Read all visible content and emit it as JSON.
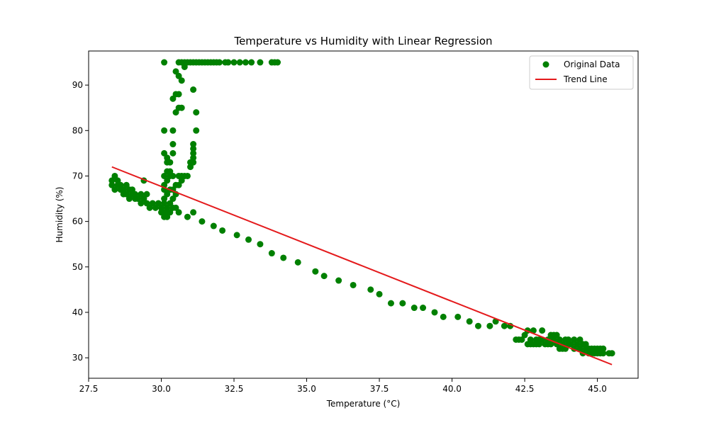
{
  "chart_data": {
    "type": "scatter",
    "title": "Temperature vs Humidity with Linear Regression",
    "xlabel": "Temperature (°C)",
    "ylabel": "Humidity (%)",
    "xlim": [
      27.5,
      46.4
    ],
    "ylim": [
      25.5,
      97.5
    ],
    "xticks": [
      27.5,
      30.0,
      32.5,
      35.0,
      37.5,
      40.0,
      42.5,
      45.0
    ],
    "xtick_labels": [
      "27.5",
      "30.0",
      "32.5",
      "35.0",
      "37.5",
      "40.0",
      "42.5",
      "45.0"
    ],
    "yticks": [
      30,
      40,
      50,
      60,
      70,
      80,
      90
    ],
    "ytick_labels": [
      "30",
      "40",
      "50",
      "60",
      "70",
      "80",
      "90"
    ],
    "grid": false,
    "legend_position": "top-right",
    "colors": {
      "scatter": "#008000",
      "trend": "#e41a1c"
    },
    "series": [
      {
        "name": "Original Data",
        "kind": "scatter",
        "points": [
          [
            28.3,
            69
          ],
          [
            28.3,
            68
          ],
          [
            28.4,
            70
          ],
          [
            28.4,
            67
          ],
          [
            28.5,
            69
          ],
          [
            28.5,
            68
          ],
          [
            28.6,
            67
          ],
          [
            28.6,
            68
          ],
          [
            28.7,
            66
          ],
          [
            28.7,
            67
          ],
          [
            28.8,
            68
          ],
          [
            28.8,
            66
          ],
          [
            28.9,
            67
          ],
          [
            28.9,
            65
          ],
          [
            29.0,
            66
          ],
          [
            29.0,
            67
          ],
          [
            29.1,
            65
          ],
          [
            29.1,
            66
          ],
          [
            29.2,
            65
          ],
          [
            29.3,
            64
          ],
          [
            29.3,
            66
          ],
          [
            29.4,
            69
          ],
          [
            29.4,
            65
          ],
          [
            29.5,
            64
          ],
          [
            29.5,
            66
          ],
          [
            29.6,
            63
          ],
          [
            29.7,
            64
          ],
          [
            29.8,
            63
          ],
          [
            29.9,
            64
          ],
          [
            30.0,
            62
          ],
          [
            30.0,
            63
          ],
          [
            30.1,
            61
          ],
          [
            30.1,
            62
          ],
          [
            30.1,
            64
          ],
          [
            30.1,
            65
          ],
          [
            30.1,
            67
          ],
          [
            30.1,
            68
          ],
          [
            30.1,
            70
          ],
          [
            30.1,
            75
          ],
          [
            30.1,
            80
          ],
          [
            30.1,
            95
          ],
          [
            30.2,
            61
          ],
          [
            30.2,
            62
          ],
          [
            30.2,
            63
          ],
          [
            30.2,
            66
          ],
          [
            30.2,
            69
          ],
          [
            30.2,
            71
          ],
          [
            30.2,
            73
          ],
          [
            30.2,
            74
          ],
          [
            30.3,
            62
          ],
          [
            30.3,
            64
          ],
          [
            30.3,
            67
          ],
          [
            30.3,
            70
          ],
          [
            30.3,
            71
          ],
          [
            30.3,
            73
          ],
          [
            30.4,
            63
          ],
          [
            30.4,
            65
          ],
          [
            30.4,
            67
          ],
          [
            30.4,
            70
          ],
          [
            30.4,
            75
          ],
          [
            30.4,
            77
          ],
          [
            30.4,
            80
          ],
          [
            30.4,
            87
          ],
          [
            30.5,
            63
          ],
          [
            30.5,
            66
          ],
          [
            30.5,
            68
          ],
          [
            30.5,
            84
          ],
          [
            30.5,
            88
          ],
          [
            30.5,
            93
          ],
          [
            30.6,
            62
          ],
          [
            30.6,
            68
          ],
          [
            30.6,
            70
          ],
          [
            30.6,
            85
          ],
          [
            30.6,
            88
          ],
          [
            30.6,
            92
          ],
          [
            30.6,
            95
          ],
          [
            30.7,
            69
          ],
          [
            30.7,
            70
          ],
          [
            30.7,
            85
          ],
          [
            30.7,
            91
          ],
          [
            30.7,
            95
          ],
          [
            30.8,
            70
          ],
          [
            30.8,
            94
          ],
          [
            30.8,
            95
          ],
          [
            30.9,
            61
          ],
          [
            30.9,
            70
          ],
          [
            30.9,
            95
          ],
          [
            31.0,
            72
          ],
          [
            31.0,
            73
          ],
          [
            31.0,
            95
          ],
          [
            31.1,
            62
          ],
          [
            31.1,
            73
          ],
          [
            31.1,
            74
          ],
          [
            31.1,
            75
          ],
          [
            31.1,
            76
          ],
          [
            31.1,
            77
          ],
          [
            31.1,
            89
          ],
          [
            31.1,
            95
          ],
          [
            31.2,
            80
          ],
          [
            31.2,
            84
          ],
          [
            31.2,
            95
          ],
          [
            31.3,
            95
          ],
          [
            31.4,
            60
          ],
          [
            31.4,
            95
          ],
          [
            31.5,
            95
          ],
          [
            31.6,
            95
          ],
          [
            31.7,
            95
          ],
          [
            31.8,
            59
          ],
          [
            31.8,
            95
          ],
          [
            31.9,
            95
          ],
          [
            32.0,
            95
          ],
          [
            32.1,
            58
          ],
          [
            32.2,
            95
          ],
          [
            32.3,
            95
          ],
          [
            32.5,
            95
          ],
          [
            32.6,
            57
          ],
          [
            32.7,
            95
          ],
          [
            32.9,
            95
          ],
          [
            33.0,
            56
          ],
          [
            33.1,
            95
          ],
          [
            33.4,
            55
          ],
          [
            33.4,
            95
          ],
          [
            33.8,
            53
          ],
          [
            33.8,
            95
          ],
          [
            33.9,
            95
          ],
          [
            34.0,
            95
          ],
          [
            34.2,
            52
          ],
          [
            34.7,
            51
          ],
          [
            35.3,
            49
          ],
          [
            35.6,
            48
          ],
          [
            36.1,
            47
          ],
          [
            36.6,
            46
          ],
          [
            37.2,
            45
          ],
          [
            37.5,
            44
          ],
          [
            37.9,
            42
          ],
          [
            38.3,
            42
          ],
          [
            38.7,
            41
          ],
          [
            39.0,
            41
          ],
          [
            39.4,
            40
          ],
          [
            39.7,
            39
          ],
          [
            40.2,
            39
          ],
          [
            40.6,
            38
          ],
          [
            40.9,
            37
          ],
          [
            41.3,
            37
          ],
          [
            41.5,
            38
          ],
          [
            41.8,
            37
          ],
          [
            42.0,
            37
          ],
          [
            42.2,
            34
          ],
          [
            42.3,
            34
          ],
          [
            42.4,
            34
          ],
          [
            42.5,
            35
          ],
          [
            42.6,
            33
          ],
          [
            42.6,
            36
          ],
          [
            42.7,
            33
          ],
          [
            42.7,
            34
          ],
          [
            42.8,
            33
          ],
          [
            42.8,
            36
          ],
          [
            42.9,
            34
          ],
          [
            42.9,
            33
          ],
          [
            43.0,
            34
          ],
          [
            43.0,
            33
          ],
          [
            43.1,
            36
          ],
          [
            43.1,
            34
          ],
          [
            43.2,
            33
          ],
          [
            43.3,
            34
          ],
          [
            43.3,
            33
          ],
          [
            43.4,
            35
          ],
          [
            43.4,
            33
          ],
          [
            43.5,
            34
          ],
          [
            43.5,
            35
          ],
          [
            43.6,
            33
          ],
          [
            43.6,
            35
          ],
          [
            43.7,
            32
          ],
          [
            43.7,
            34
          ],
          [
            43.8,
            33
          ],
          [
            43.8,
            32
          ],
          [
            43.9,
            34
          ],
          [
            43.9,
            32
          ],
          [
            44.0,
            33
          ],
          [
            44.0,
            34
          ],
          [
            44.1,
            33
          ],
          [
            44.2,
            32
          ],
          [
            44.2,
            34
          ],
          [
            44.3,
            33
          ],
          [
            44.4,
            34
          ],
          [
            44.4,
            32
          ],
          [
            44.5,
            33
          ],
          [
            44.5,
            31
          ],
          [
            44.6,
            32
          ],
          [
            44.6,
            33
          ],
          [
            44.7,
            31
          ],
          [
            44.7,
            32
          ],
          [
            44.8,
            31
          ],
          [
            44.8,
            32
          ],
          [
            44.9,
            31
          ],
          [
            44.9,
            32
          ],
          [
            45.0,
            31
          ],
          [
            45.0,
            32
          ],
          [
            45.1,
            31
          ],
          [
            45.1,
            32
          ],
          [
            45.2,
            31
          ],
          [
            45.2,
            32
          ],
          [
            45.4,
            31
          ],
          [
            45.5,
            31
          ]
        ]
      },
      {
        "name": "Trend Line",
        "kind": "line",
        "points": [
          [
            28.3,
            72.0
          ],
          [
            45.5,
            28.5
          ]
        ]
      }
    ]
  }
}
